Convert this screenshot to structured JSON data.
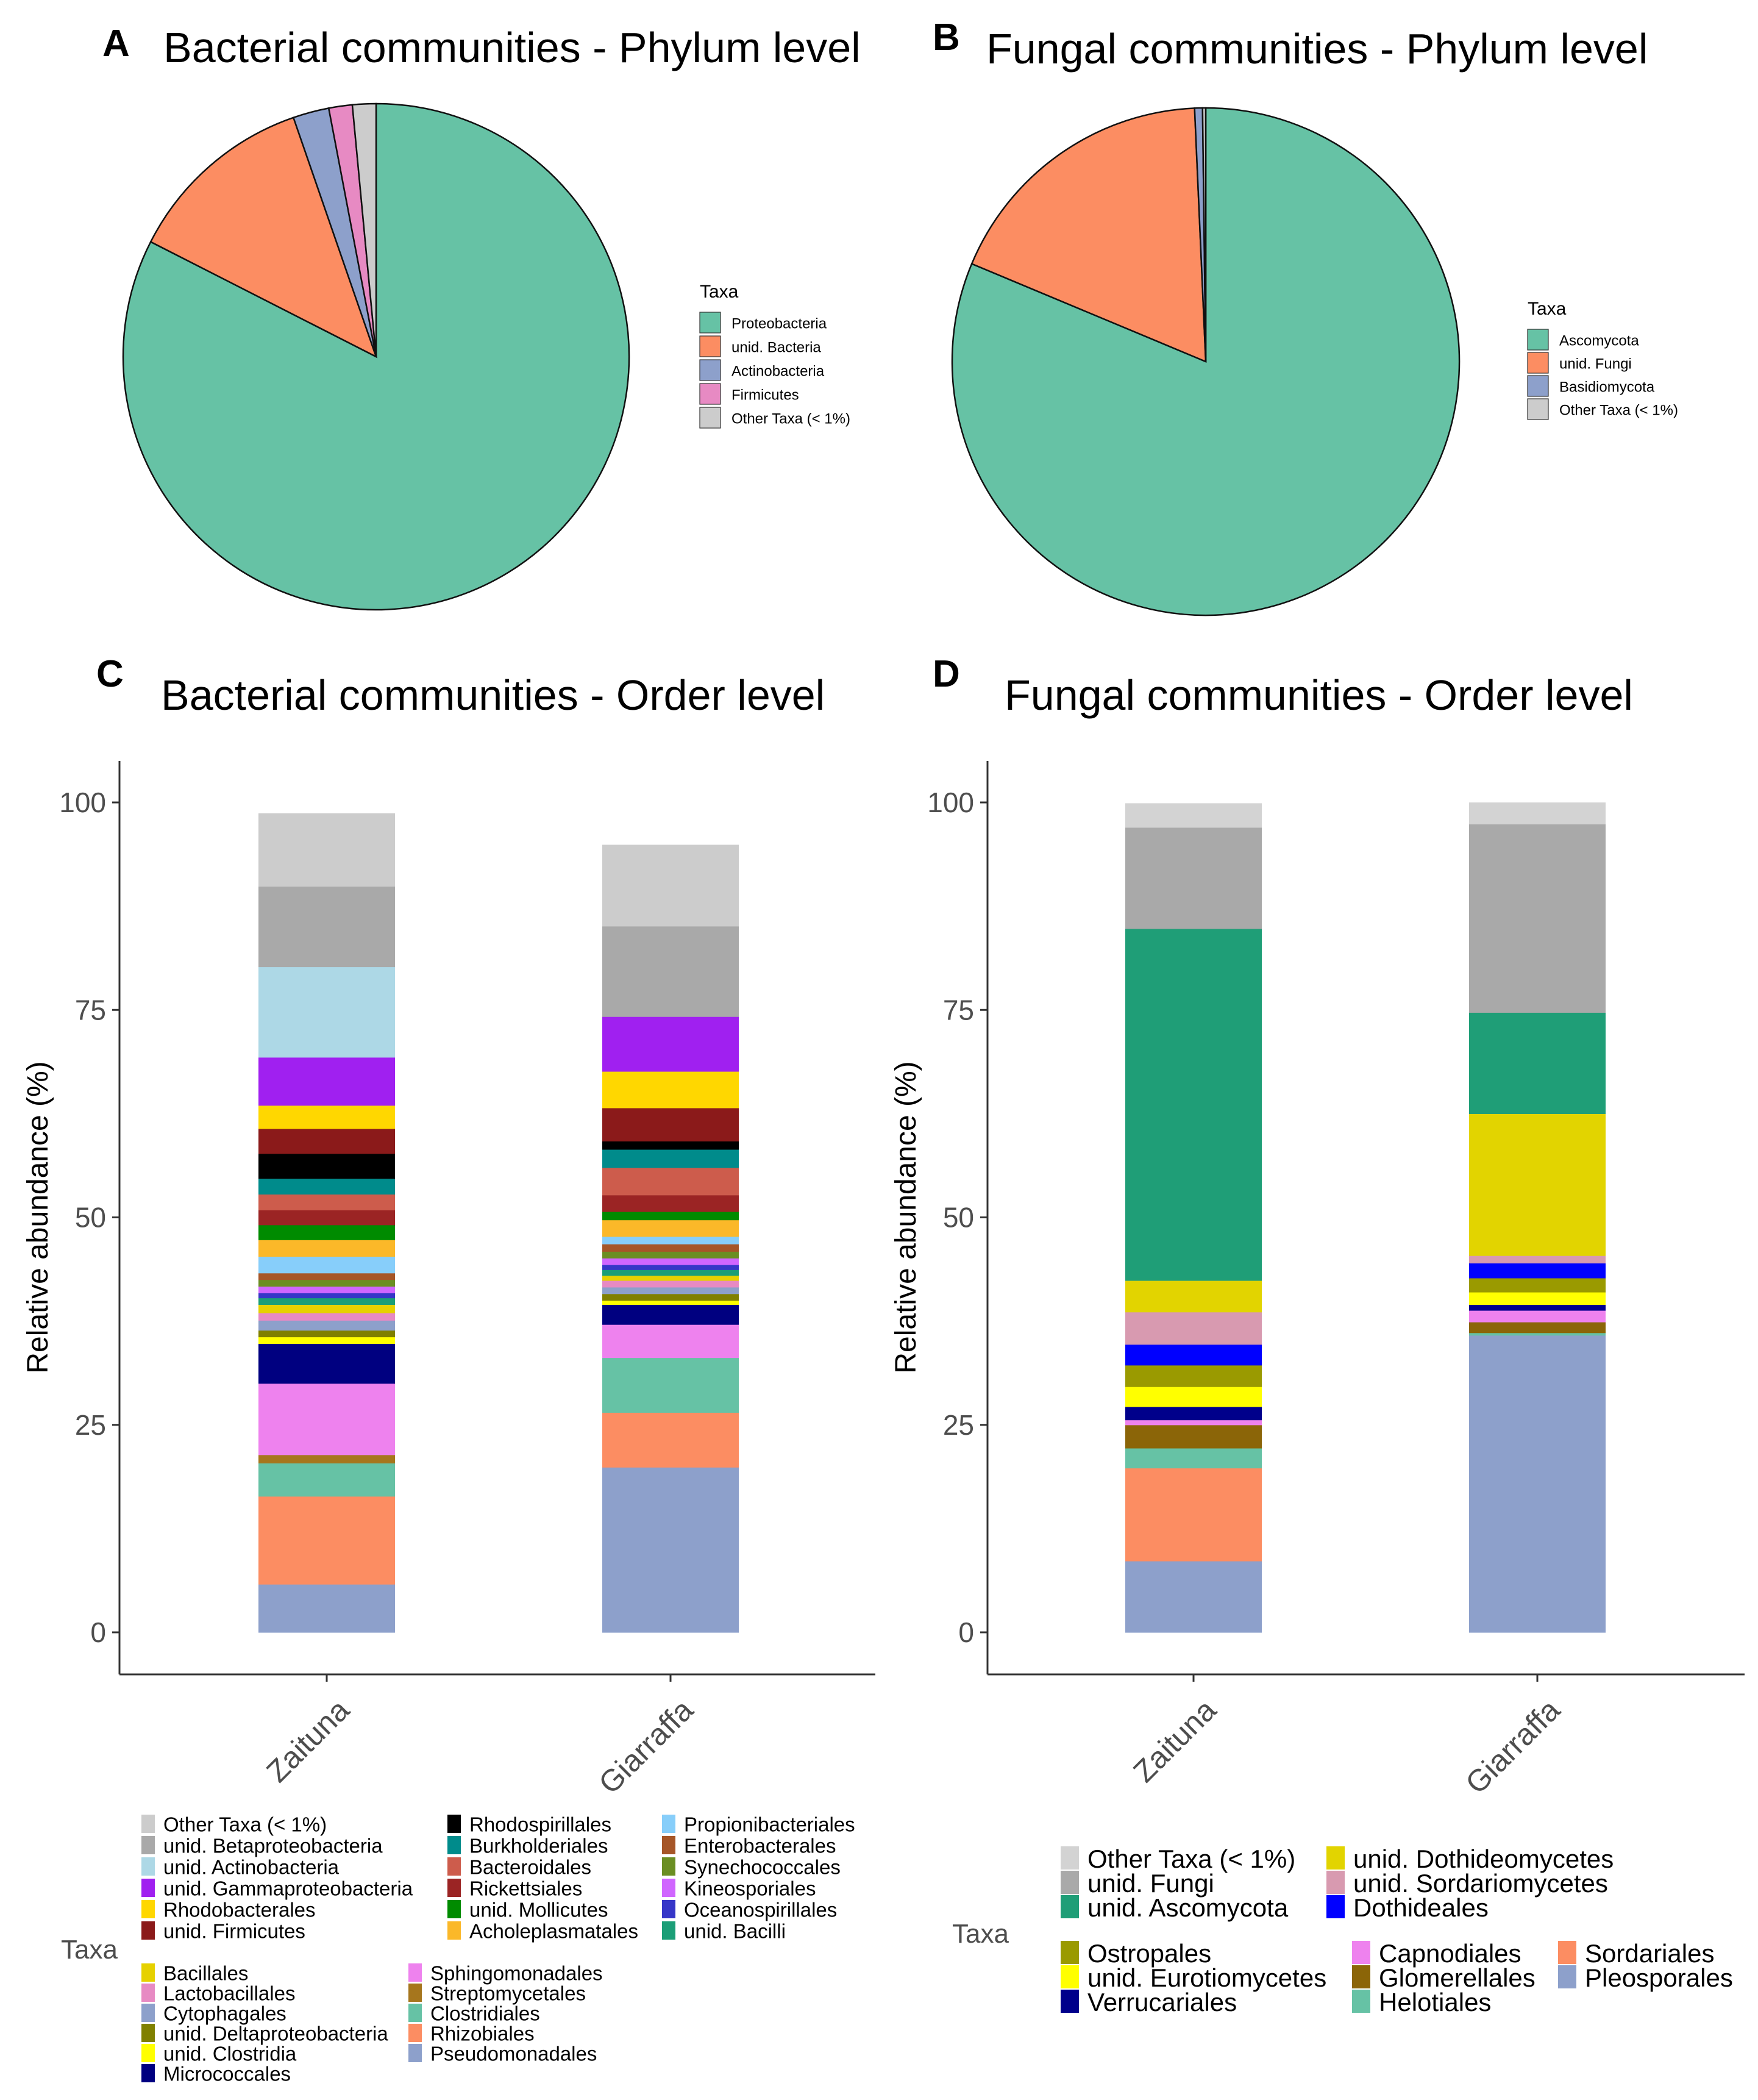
{
  "chart_data": [
    {
      "id": "A",
      "type": "pie",
      "panel_label": "A",
      "title": "Bacterial communities - Phylum level",
      "legend_title": "Taxa",
      "legend_placement": "right",
      "slices": [
        {
          "label": "Proteobacteria",
          "value": 82.5,
          "color": "#66c2a5"
        },
        {
          "label": "unid. Bacteria",
          "value": 12.2,
          "color": "#fc8d62"
        },
        {
          "label": "Actinobacteria",
          "value": 2.3,
          "color": "#8da0cb"
        },
        {
          "label": "Firmicutes",
          "value": 1.5,
          "color": "#e78ac3"
        },
        {
          "label": "Other Taxa (< 1%)",
          "value": 1.5,
          "color": "#cccccc"
        }
      ]
    },
    {
      "id": "B",
      "type": "pie",
      "panel_label": "B",
      "title": "Fungal communities - Phylum level",
      "legend_title": "Taxa",
      "legend_placement": "right",
      "slices": [
        {
          "label": "Ascomycota",
          "value": 81.3,
          "color": "#66c2a5"
        },
        {
          "label": "unid. Fungi",
          "value": 18.0,
          "color": "#fc8d62"
        },
        {
          "label": "Basidiomycota",
          "value": 0.5,
          "color": "#8da0cb"
        },
        {
          "label": "Other Taxa (< 1%)",
          "value": 0.2,
          "color": "#cccccc"
        }
      ]
    },
    {
      "id": "C",
      "type": "bar",
      "stacked": true,
      "panel_label": "C",
      "title": "Bacterial communities - Order level",
      "ylabel": "Relative abundance (%)",
      "xlabel": "",
      "ylim": [
        0,
        100
      ],
      "yticks": [
        0,
        25,
        50,
        75,
        100
      ],
      "categories": [
        "Zaituna",
        "Giarraffa"
      ],
      "legend_title": "Taxa",
      "legend_placement": "bottom",
      "series": [
        {
          "name": "Pseudomonadales",
          "color": "#8da0cb",
          "values": [
            5.8,
            19.9
          ]
        },
        {
          "name": "Rhizobiales",
          "color": "#fc8d62",
          "values": [
            10.6,
            6.6
          ]
        },
        {
          "name": "Clostridiales",
          "color": "#66c2a5",
          "values": [
            4.0,
            6.6
          ]
        },
        {
          "name": "Streptomycetales",
          "color": "#a6761d",
          "values": [
            1.0,
            0.0
          ]
        },
        {
          "name": "Sphingomonadales",
          "color": "#ee82ee",
          "values": [
            8.6,
            4.0
          ]
        },
        {
          "name": "Micrococcales",
          "color": "#000080",
          "values": [
            4.8,
            2.4
          ]
        },
        {
          "name": "unid. Clostridia",
          "color": "#ffff00",
          "values": [
            0.8,
            0.5
          ]
        },
        {
          "name": "unid. Deltaproteobacteria",
          "color": "#808000",
          "values": [
            0.8,
            0.8
          ]
        },
        {
          "name": "Cytophagales",
          "color": "#8da0cb",
          "values": [
            1.2,
            0.8
          ]
        },
        {
          "name": "Lactobacillales",
          "color": "#e78ac3",
          "values": [
            0.9,
            0.8
          ]
        },
        {
          "name": "Bacillales",
          "color": "#e6d100",
          "values": [
            1.0,
            0.6
          ]
        },
        {
          "name": "unid. Bacilli",
          "color": "#1b9e77",
          "values": [
            0.8,
            0.7
          ]
        },
        {
          "name": "Oceanospirillales",
          "color": "#3636c8",
          "values": [
            0.6,
            0.6
          ]
        },
        {
          "name": "Kineosporiales",
          "color": "#d066ff",
          "values": [
            0.8,
            0.8
          ]
        },
        {
          "name": "Synechococcales",
          "color": "#6b8e23",
          "values": [
            0.8,
            0.8
          ]
        },
        {
          "name": "Enterobacterales",
          "color": "#a65628",
          "values": [
            0.8,
            0.9
          ]
        },
        {
          "name": "Propionibacteriales",
          "color": "#87cefa",
          "values": [
            2.0,
            0.9
          ]
        },
        {
          "name": "Acholeplasmatales",
          "color": "#fbb829",
          "values": [
            2.0,
            2.0
          ]
        },
        {
          "name": "unid. Mollicutes",
          "color": "#008b00",
          "values": [
            1.8,
            1.0
          ]
        },
        {
          "name": "Rickettsiales",
          "color": "#9b2424",
          "values": [
            1.8,
            2.0
          ]
        },
        {
          "name": "Bacteroidales",
          "color": "#cd5c4c",
          "values": [
            1.9,
            3.3
          ]
        },
        {
          "name": "Burkholderiales",
          "color": "#008b8b",
          "values": [
            1.9,
            2.2
          ]
        },
        {
          "name": "Rhodospirillales",
          "color": "#000000",
          "values": [
            3.0,
            1.0
          ]
        },
        {
          "name": "unid. Firmicutes",
          "color": "#8b1a1a",
          "values": [
            3.0,
            4.0
          ]
        },
        {
          "name": "Rhodobacterales",
          "color": "#ffd700",
          "values": [
            2.8,
            4.4
          ]
        },
        {
          "name": "unid. Gammaproteobacteria",
          "color": "#a020f0",
          "values": [
            5.8,
            6.6
          ]
        },
        {
          "name": "unid. Actinobacteria",
          "color": "#add8e6",
          "values": [
            10.9,
            0.0
          ]
        },
        {
          "name": "unid. Betaproteobacteria",
          "color": "#a9a9a9",
          "values": [
            9.7,
            10.9
          ]
        },
        {
          "name": "Other Taxa (< 1%)",
          "color": "#cccccc",
          "values": [
            8.8,
            9.8
          ]
        }
      ],
      "legend_order": [
        "Other Taxa (< 1%)",
        "unid. Betaproteobacteria",
        "unid. Actinobacteria",
        "unid. Gammaproteobacteria",
        "Rhodobacterales",
        "unid. Firmicutes",
        "Rhodospirillales",
        "Burkholderiales",
        "Bacteroidales",
        "Rickettsiales",
        "unid. Mollicutes",
        "Acholeplasmatales",
        "Propionibacteriales",
        "Enterobacterales",
        "Synechococcales",
        "Kineosporiales",
        "Oceanospirillales",
        "unid. Bacilli",
        "Bacillales",
        "Lactobacillales",
        "Cytophagales",
        "unid. Deltaproteobacteria",
        "unid. Clostridia",
        "Micrococcales",
        "Sphingomonadales",
        "Streptomycetales",
        "Clostridiales",
        "Rhizobiales",
        "Pseudomonadales"
      ]
    },
    {
      "id": "D",
      "type": "bar",
      "stacked": true,
      "panel_label": "D",
      "title": "Fungal communities - Order level",
      "ylabel": "Relative abundance (%)",
      "xlabel": "",
      "ylim": [
        0,
        100
      ],
      "yticks": [
        0,
        25,
        50,
        75,
        100
      ],
      "categories": [
        "Zaituna",
        "Giarraffa"
      ],
      "legend_title": "Taxa",
      "legend_placement": "bottom",
      "series": [
        {
          "name": "Pleosporales",
          "color": "#8da0cb",
          "values": [
            8.6,
            35.8
          ]
        },
        {
          "name": "Sordariales",
          "color": "#fc8d62",
          "values": [
            11.2,
            0.0
          ]
        },
        {
          "name": "Helotiales",
          "color": "#66c2a5",
          "values": [
            2.4,
            0.3
          ]
        },
        {
          "name": "Glomerellales",
          "color": "#8b6508",
          "values": [
            2.8,
            1.3
          ]
        },
        {
          "name": "Capnodiales",
          "color": "#ee82ee",
          "values": [
            0.6,
            1.4
          ]
        },
        {
          "name": "Verrucariales",
          "color": "#00008b",
          "values": [
            1.6,
            0.7
          ]
        },
        {
          "name": "unid. Eurotiomycetes",
          "color": "#ffff00",
          "values": [
            2.4,
            1.5
          ]
        },
        {
          "name": "Ostropales",
          "color": "#9a9a00",
          "values": [
            2.6,
            1.7
          ]
        },
        {
          "name": "Dothideales",
          "color": "#0000ff",
          "values": [
            2.5,
            1.8
          ]
        },
        {
          "name": "unid. Sordariomycetes",
          "color": "#d89ab0",
          "values": [
            3.9,
            0.9
          ]
        },
        {
          "name": "unid. Dothideomycetes",
          "color": "#e2d400",
          "values": [
            3.8,
            17.1
          ]
        },
        {
          "name": "unid. Ascomycota",
          "color": "#1f9e77",
          "values": [
            42.4,
            12.2
          ]
        },
        {
          "name": "unid. Fungi",
          "color": "#a9a9a9",
          "values": [
            12.2,
            22.7
          ]
        },
        {
          "name": "Other Taxa (< 1%)",
          "color": "#d3d3d3",
          "values": [
            2.9,
            2.6
          ]
        }
      ],
      "legend_order": [
        "Other Taxa (< 1%)",
        "unid. Fungi",
        "unid. Ascomycota",
        "unid. Dothideomycetes",
        "unid. Sordariomycetes",
        "Dothideales",
        "Ostropales",
        "unid. Eurotiomycetes",
        "Verrucariales",
        "Capnodiales",
        "Glomerellales",
        "Helotiales",
        "Sordariales",
        "Pleosporales"
      ]
    }
  ]
}
